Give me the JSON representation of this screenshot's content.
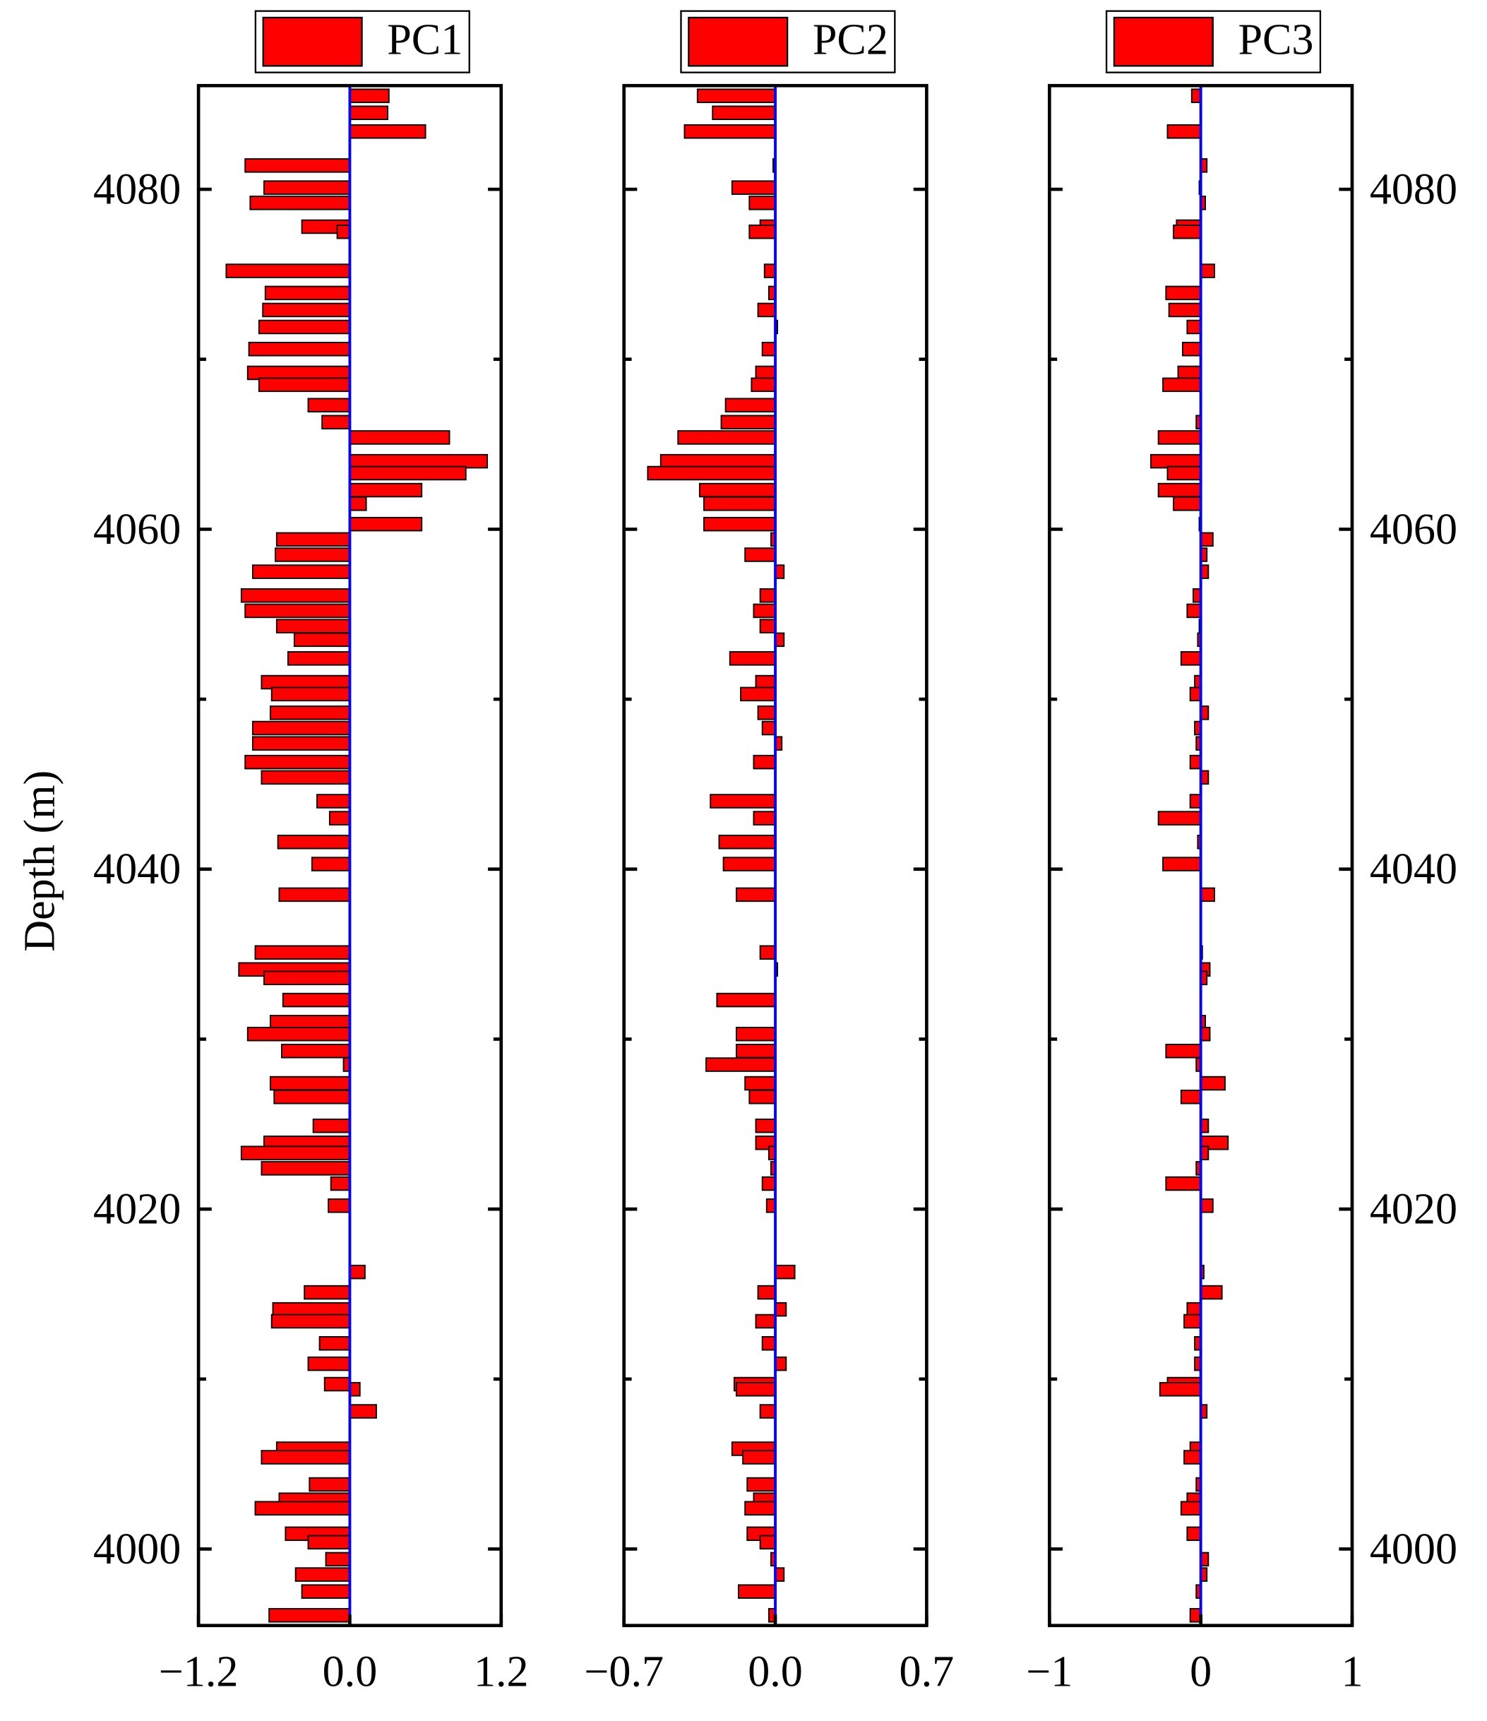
{
  "chart_data": {
    "type": "bar",
    "orientation": "horizontal",
    "y_label": "Depth (m)",
    "depths": [
      4085.5,
      4084.5,
      4083.4,
      4081.4,
      4080.1,
      4079.2,
      4077.8,
      4077.5,
      4075.2,
      4073.9,
      4072.9,
      4071.9,
      4070.6,
      4069.2,
      4068.5,
      4067.3,
      4066.3,
      4065.4,
      4064.0,
      4063.3,
      4062.3,
      4061.5,
      4060.3,
      4059.4,
      4058.5,
      4057.5,
      4056.1,
      4055.2,
      4054.3,
      4053.5,
      4052.4,
      4051.0,
      4050.3,
      4049.2,
      4048.3,
      4047.4,
      4046.3,
      4045.4,
      4044.0,
      4043.0,
      4041.6,
      4040.3,
      4038.5,
      4035.1,
      4034.1,
      4033.6,
      4032.3,
      4031.0,
      4030.3,
      4029.3,
      4028.5,
      4027.4,
      4026.6,
      4024.9,
      4023.9,
      4023.3,
      4022.4,
      4021.5,
      4020.2,
      4016.3,
      4015.1,
      4014.1,
      4013.4,
      4012.1,
      4010.9,
      4009.7,
      4009.4,
      4008.1,
      4005.9,
      4005.4,
      4003.8,
      4002.9,
      4002.4,
      4000.9,
      4000.4,
      3999.4,
      3998.5,
      3997.5,
      3996.1
    ],
    "ylim": [
      3995.5,
      4086.1
    ],
    "yticks": [
      4000,
      4020,
      4040,
      4060,
      4080
    ],
    "yminorticks": [
      4010,
      4030,
      4050,
      4070
    ],
    "zero_line_color": "#0000ff",
    "bar_edge_color": "#000000",
    "panels": [
      {
        "name": "PC1",
        "color": "#ff0000",
        "xlim": [
          -1.2,
          1.2
        ],
        "xticks": [
          {
            "value": -1.2,
            "label": "−1.2"
          },
          {
            "value": 0,
            "label": "0.0"
          },
          {
            "value": 1.2,
            "label": "1.2"
          }
        ],
        "values": [
          0.31,
          0.3,
          0.6,
          -0.83,
          -0.68,
          -0.79,
          -0.38,
          -0.1,
          -0.98,
          -0.67,
          -0.69,
          -0.72,
          -0.8,
          -0.81,
          -0.72,
          -0.33,
          -0.22,
          0.79,
          1.09,
          0.92,
          0.57,
          0.13,
          0.57,
          -0.58,
          -0.59,
          -0.77,
          -0.86,
          -0.83,
          -0.58,
          -0.44,
          -0.49,
          -0.7,
          -0.62,
          -0.63,
          -0.77,
          -0.77,
          -0.83,
          -0.7,
          -0.26,
          -0.16,
          -0.57,
          -0.3,
          -0.56,
          -0.75,
          -0.88,
          -0.68,
          -0.53,
          -0.63,
          -0.81,
          -0.54,
          -0.05,
          -0.63,
          -0.6,
          -0.29,
          -0.68,
          -0.86,
          -0.7,
          -0.15,
          -0.17,
          0.12,
          -0.36,
          -0.61,
          -0.62,
          -0.24,
          -0.33,
          -0.2,
          0.08,
          0.21,
          -0.58,
          -0.7,
          -0.32,
          -0.56,
          -0.75,
          -0.51,
          -0.33,
          -0.19,
          -0.43,
          -0.38,
          -0.64
        ]
      },
      {
        "name": "PC2",
        "color": "#ff0000",
        "xlim": [
          -0.7,
          0.7
        ],
        "xticks": [
          {
            "value": -0.7,
            "label": "−0.7"
          },
          {
            "value": 0,
            "label": "0.0"
          },
          0.7
        ],
        "values": [
          -0.36,
          -0.29,
          -0.42,
          -0.01,
          -0.2,
          -0.12,
          -0.07,
          -0.12,
          -0.05,
          -0.03,
          -0.08,
          0.01,
          -0.06,
          -0.09,
          -0.11,
          -0.23,
          -0.25,
          -0.45,
          -0.53,
          -0.59,
          -0.35,
          -0.33,
          -0.33,
          -0.02,
          -0.14,
          0.04,
          -0.07,
          -0.1,
          -0.07,
          0.04,
          -0.21,
          -0.09,
          -0.16,
          -0.08,
          -0.06,
          0.03,
          -0.1,
          0,
          -0.3,
          -0.1,
          -0.26,
          -0.24,
          -0.18,
          -0.07,
          0.01,
          0,
          -0.27,
          0,
          -0.18,
          -0.18,
          -0.32,
          -0.14,
          -0.12,
          -0.09,
          -0.09,
          -0.03,
          -0.02,
          -0.06,
          -0.04,
          0.09,
          -0.08,
          0.05,
          -0.09,
          -0.06,
          0.05,
          -0.19,
          -0.18,
          -0.07,
          -0.2,
          -0.15,
          -0.13,
          -0.1,
          -0.14,
          -0.13,
          -0.07,
          -0.02,
          0.04,
          -0.17,
          -0.03
        ]
      },
      {
        "name": "PC3",
        "color": "#ff0000",
        "xlim": [
          -1,
          1
        ],
        "xticks": [
          {
            "value": -1,
            "label": "−1"
          },
          0,
          1
        ],
        "values": [
          -0.06,
          0,
          -0.22,
          0.04,
          -0.01,
          0.03,
          -0.16,
          -0.18,
          0.09,
          -0.23,
          -0.21,
          -0.09,
          -0.12,
          -0.15,
          -0.25,
          0,
          -0.03,
          -0.28,
          -0.33,
          -0.22,
          -0.28,
          -0.18,
          -0.01,
          0.08,
          0.04,
          0.05,
          -0.05,
          -0.09,
          -0.01,
          -0.02,
          -0.13,
          -0.04,
          -0.07,
          0.05,
          -0.04,
          -0.03,
          -0.07,
          0.05,
          -0.07,
          -0.28,
          -0.02,
          -0.25,
          0.09,
          0.01,
          0.06,
          0.04,
          0,
          0.03,
          0.06,
          -0.23,
          -0.03,
          0.16,
          -0.13,
          0.05,
          0.18,
          0.05,
          -0.03,
          -0.23,
          0.08,
          0.02,
          0.14,
          -0.09,
          -0.11,
          -0.04,
          -0.04,
          -0.22,
          -0.27,
          0.04,
          -0.07,
          -0.11,
          -0.03,
          -0.09,
          -0.13,
          -0.09,
          0,
          0.05,
          0.04,
          -0.03,
          -0.07
        ]
      }
    ]
  }
}
